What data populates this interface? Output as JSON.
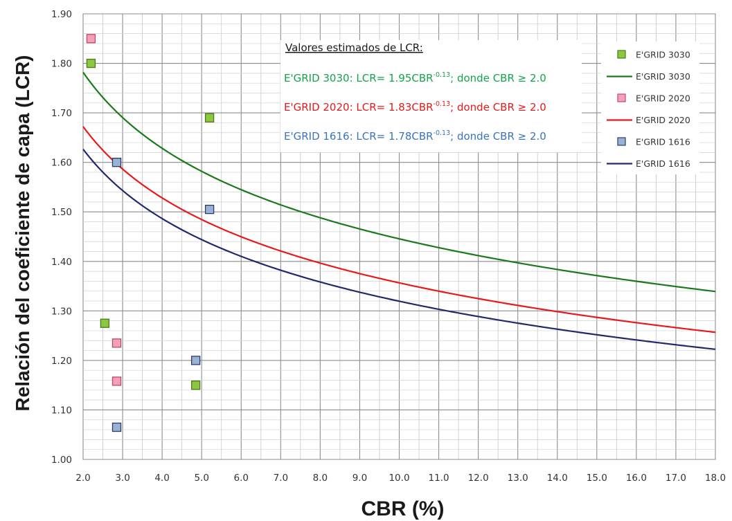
{
  "chart_data": {
    "type": "scatter",
    "xlabel": "CBR (%)",
    "ylabel": "Relación del coeficiente de capa (LCR)",
    "xlim": [
      2.0,
      18.0
    ],
    "ylim": [
      1.0,
      1.9
    ],
    "x_ticks": [
      "2.0",
      "3.0",
      "4.0",
      "5.0",
      "6.0",
      "7.0",
      "8.0",
      "9.0",
      "10.0",
      "11.0",
      "12.0",
      "13.0",
      "14.0",
      "15.0",
      "16.0",
      "17.0",
      "18.0"
    ],
    "y_ticks": [
      "1.00",
      "1.10",
      "1.20",
      "1.30",
      "1.40",
      "1.50",
      "1.60",
      "1.70",
      "1.80",
      "1.90"
    ],
    "grid": true,
    "legend_position": "top-right",
    "series": [
      {
        "name": "E'GRID 3030",
        "kind": "points",
        "color": "#8dc63f",
        "edge": "#4a7a1f",
        "points": [
          [
            2.2,
            1.8
          ],
          [
            2.55,
            1.275
          ],
          [
            4.85,
            1.15
          ],
          [
            5.2,
            1.69
          ]
        ]
      },
      {
        "name": "E'GRID 3030",
        "kind": "line",
        "color": "#1a7a1a",
        "formula": {
          "a": 1.95,
          "b": -0.13
        },
        "x_range": [
          2.0,
          18.0
        ]
      },
      {
        "name": "E'GRID 2020",
        "kind": "points",
        "color": "#f4a0b8",
        "edge": "#c04a6a",
        "points": [
          [
            2.2,
            1.85
          ],
          [
            2.85,
            1.235
          ],
          [
            2.85,
            1.158
          ]
        ]
      },
      {
        "name": "E'GRID 2020",
        "kind": "line",
        "color": "#e8191a",
        "formula": {
          "a": 1.83,
          "b": -0.13
        },
        "x_range": [
          2.0,
          18.0
        ]
      },
      {
        "name": "E'GRID 1616",
        "kind": "points",
        "color": "#9ab3d5",
        "edge": "#2b3a67",
        "points": [
          [
            2.85,
            1.6
          ],
          [
            2.85,
            1.065
          ],
          [
            4.85,
            1.2
          ],
          [
            5.2,
            1.505
          ]
        ]
      },
      {
        "name": "E'GRID 1616",
        "kind": "line",
        "color": "#1f2a6b",
        "formula": {
          "a": 1.78,
          "b": -0.13
        },
        "x_range": [
          2.0,
          18.0
        ]
      }
    ],
    "annotation": {
      "title": "Valores estimados de LCR:",
      "lines": [
        {
          "prefix": "E'GRID 3030: LCR=  1.95CBR",
          "exp": "-0.13",
          "suffix": "; donde CBR ≥ 2.0",
          "color": "#16a34a"
        },
        {
          "prefix": "E'GRID 2020: LCR=  1.83CBR",
          "exp": "-0.13",
          "suffix": "; donde CBR ≥ 2.0",
          "color": "#e8191a"
        },
        {
          "prefix": "E'GRID 1616: LCR=  1.78CBR",
          "exp": "-0.13",
          "suffix": "; donde CBR ≥ 2.0",
          "color": "#3a73c0"
        }
      ]
    }
  }
}
